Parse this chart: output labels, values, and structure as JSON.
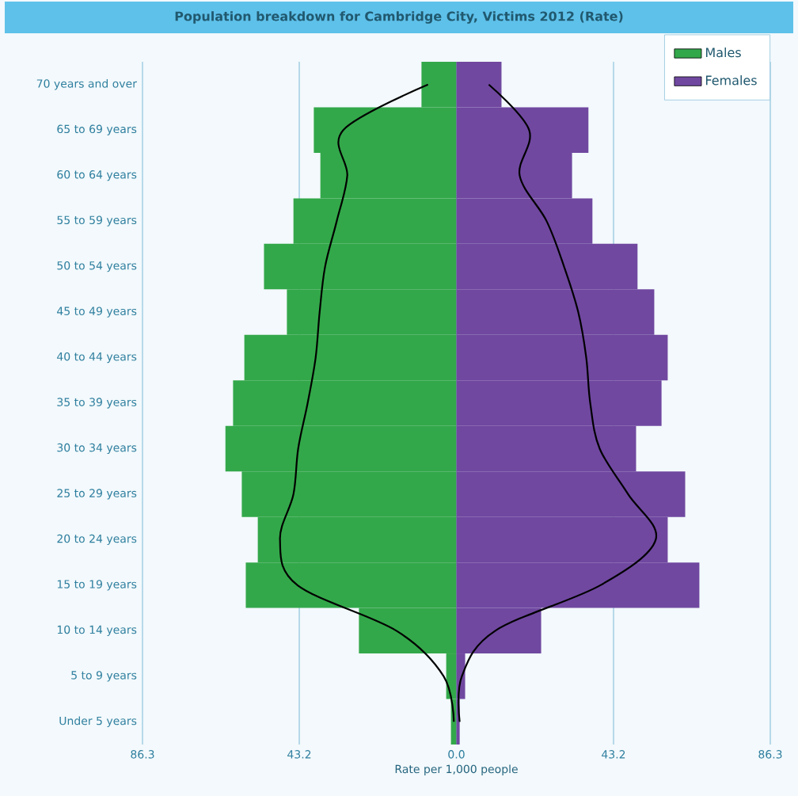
{
  "chart_data": {
    "type": "bar",
    "orientation": "horizontal",
    "title": "Population breakdown for Cambridge City, Victims 2012 (Rate)",
    "xlabel": "Rate per 1,000 people",
    "categories": [
      "70 years and over",
      "65 to 69 years",
      "60 to 64 years",
      "55 to 59 years",
      "50 to 54 years",
      "45 to 49 years",
      "40 to 44 years",
      "35 to 39 years",
      "30 to 34 years",
      "25 to 29 years",
      "20 to 24 years",
      "15 to 19 years",
      "10 to 14 years",
      "5 to 9 years",
      "Under 5 years"
    ],
    "series": [
      {
        "name": "Males",
        "color": "#33a84a",
        "values": [
          -9.6,
          -39.2,
          -37.4,
          -44.8,
          -52.9,
          -46.6,
          -58.3,
          -61.4,
          -63.5,
          -59.0,
          -54.6,
          -57.9,
          -26.8,
          -2.8,
          -1.5
        ]
      },
      {
        "name": "Females",
        "color": "#7048a0",
        "values": [
          12.4,
          36.3,
          31.8,
          37.4,
          49.8,
          54.4,
          58.1,
          56.4,
          49.4,
          62.9,
          58.1,
          66.8,
          23.3,
          2.4,
          0.9
        ]
      },
      {
        "type": "line",
        "color": "#000000",
        "values": [
          -7.8,
          -31.1,
          -30.0,
          -32.9,
          -36.1,
          -37.6,
          -38.7,
          -40.9,
          -43.5,
          -44.8,
          -48.5,
          -43.7,
          -16.5,
          -3.5,
          -0.7
        ]
      },
      {
        "type": "line",
        "color": "#000000",
        "values": [
          8.9,
          20.0,
          17.4,
          24.8,
          29.6,
          33.5,
          35.7,
          36.8,
          39.4,
          47.2,
          54.8,
          39.6,
          10.7,
          1.5,
          0.9
        ]
      }
    ],
    "xlim": [
      -86.3,
      86.3
    ],
    "xticks": [
      {
        "value": -86.3,
        "label": "86.3"
      },
      {
        "value": -43.2,
        "label": "43.2"
      },
      {
        "value": 0,
        "label": "0.0"
      },
      43.2,
      86.3
    ],
    "stacked": true,
    "grid": "x",
    "legend": "top right",
    "marker": "none"
  }
}
